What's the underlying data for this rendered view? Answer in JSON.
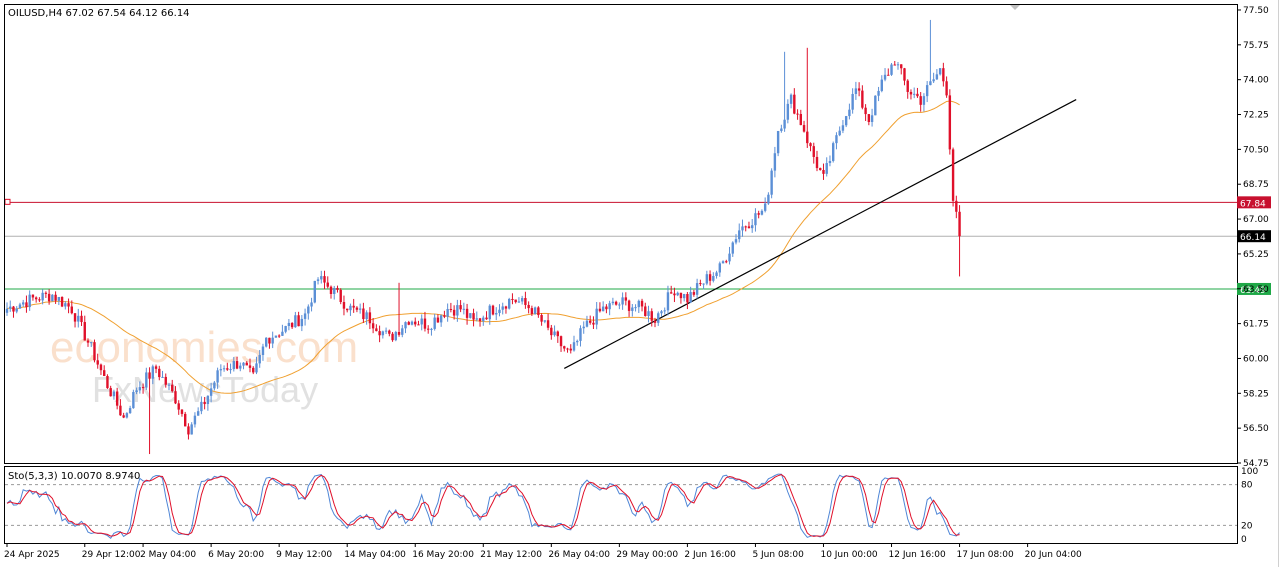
{
  "chart_data": {
    "type": "candlestick",
    "main": {
      "header": "OILUSD,H4  67.02 67.54 64.12 66.14",
      "y_ticks": [
        "77.50",
        "75.75",
        "74.00",
        "72.25",
        "70.50",
        "68.75",
        "67.00",
        "65.25",
        "63.50",
        "61.75",
        "60.00",
        "58.25",
        "56.50",
        "54.75"
      ],
      "ylim": [
        54.75,
        77.75
      ],
      "price_lines": [
        {
          "label": "67.84",
          "value": 67.84,
          "color": "#c8102e"
        },
        {
          "label": "66.14",
          "value": 66.14,
          "color": "#000000"
        },
        {
          "label": "63.49",
          "value": 63.49,
          "color": "#1fa847"
        }
      ],
      "colors": {
        "up": "#5b8fd6",
        "down": "#e0102a",
        "ma": "#f0a030",
        "trend": "#000000",
        "grid": "#000000"
      },
      "trendline": [
        {
          "bar": 172,
          "price": 59.5
        },
        {
          "bar": 330,
          "price": 73.0
        }
      ],
      "close_path": [
        [
          0,
          62.5
        ],
        [
          8,
          63.0
        ],
        [
          14,
          63.2
        ],
        [
          20,
          62.5
        ],
        [
          26,
          60.5
        ],
        [
          30,
          59.0
        ],
        [
          36,
          57.0
        ],
        [
          40,
          58.5
        ],
        [
          46,
          59.5
        ],
        [
          52,
          58.0
        ],
        [
          56,
          56.5
        ],
        [
          60,
          57.5
        ],
        [
          66,
          59.5
        ],
        [
          72,
          59.8
        ],
        [
          76,
          59.0
        ],
        [
          80,
          61.0
        ],
        [
          86,
          61.5
        ],
        [
          92,
          62.2
        ],
        [
          96,
          64.0
        ],
        [
          100,
          63.5
        ],
        [
          106,
          62.5
        ],
        [
          112,
          62.0
        ],
        [
          118,
          61.0
        ],
        [
          124,
          62.0
        ],
        [
          130,
          61.7
        ],
        [
          136,
          62.5
        ],
        [
          140,
          62.5
        ],
        [
          144,
          61.8
        ],
        [
          150,
          62.5
        ],
        [
          156,
          63.0
        ],
        [
          162,
          62.5
        ],
        [
          168,
          61.2
        ],
        [
          172,
          60.5
        ],
        [
          174,
          60.2
        ],
        [
          178,
          61.5
        ],
        [
          184,
          62.5
        ],
        [
          190,
          62.8
        ],
        [
          196,
          62.5
        ],
        [
          200,
          62.0
        ],
        [
          206,
          63.5
        ],
        [
          210,
          63.0
        ],
        [
          216,
          64.0
        ],
        [
          220,
          64.5
        ],
        [
          226,
          66.5
        ],
        [
          230,
          67.0
        ],
        [
          234,
          67.5
        ],
        [
          238,
          71.5
        ],
        [
          242,
          73.0
        ],
        [
          246,
          71.5
        ],
        [
          248,
          70.5
        ],
        [
          252,
          69.0
        ],
        [
          254,
          70.0
        ],
        [
          258,
          72.0
        ],
        [
          262,
          73.5
        ],
        [
          266,
          72.0
        ],
        [
          270,
          73.8
        ],
        [
          274,
          75.0
        ],
        [
          278,
          73.5
        ],
        [
          282,
          73.0
        ],
        [
          286,
          74.0
        ],
        [
          288,
          74.5
        ],
        [
          290,
          73.5
        ],
        [
          292,
          68.0
        ],
        [
          294,
          66.14
        ]
      ],
      "spikes": [
        {
          "bar": 240,
          "high": 75.4
        },
        {
          "bar": 247,
          "high": 75.6
        },
        {
          "bar": 285,
          "high": 77.0
        },
        {
          "bar": 294,
          "low": 64.12
        },
        {
          "bar": 121,
          "high": 63.8
        },
        {
          "bar": 44,
          "low": 55.2
        }
      ],
      "x_ticks": [
        {
          "bar": 0,
          "label": "24 Apr 2025"
        },
        {
          "bar": 24,
          "label": "29 Apr 12:00"
        },
        {
          "bar": 42,
          "label": "2 May 04:00"
        },
        {
          "bar": 63,
          "label": "6 May 20:00"
        },
        {
          "bar": 84,
          "label": "9 May 12:00"
        },
        {
          "bar": 105,
          "label": "14 May 04:00"
        },
        {
          "bar": 126,
          "label": "16 May 20:00"
        },
        {
          "bar": 147,
          "label": "21 May 12:00"
        },
        {
          "bar": 168,
          "label": "26 May 04:00"
        },
        {
          "bar": 189,
          "label": "29 May 00:00"
        },
        {
          "bar": 210,
          "label": "2 Jun 16:00"
        },
        {
          "bar": 231,
          "label": "5 Jun 08:00"
        },
        {
          "bar": 252,
          "label": "10 Jun 00:00"
        },
        {
          "bar": 273,
          "label": "12 Jun 16:00"
        },
        {
          "bar": 294,
          "label": "17 Jun 08:00"
        },
        {
          "bar": 315,
          "label": "20 Jun 04:00"
        }
      ]
    },
    "stochastic": {
      "header": "Sto(5,3,3) 10.0070 8.9740",
      "y_ticks": [
        "100",
        "80",
        "20",
        "0"
      ],
      "ylim": [
        0,
        100
      ],
      "levels": [
        80,
        20
      ],
      "colors": {
        "main": "#4f86d6",
        "signal": "#e0102a"
      }
    },
    "watermark": {
      "line1": "economies.com",
      "line2": "FxNewsToday"
    }
  }
}
